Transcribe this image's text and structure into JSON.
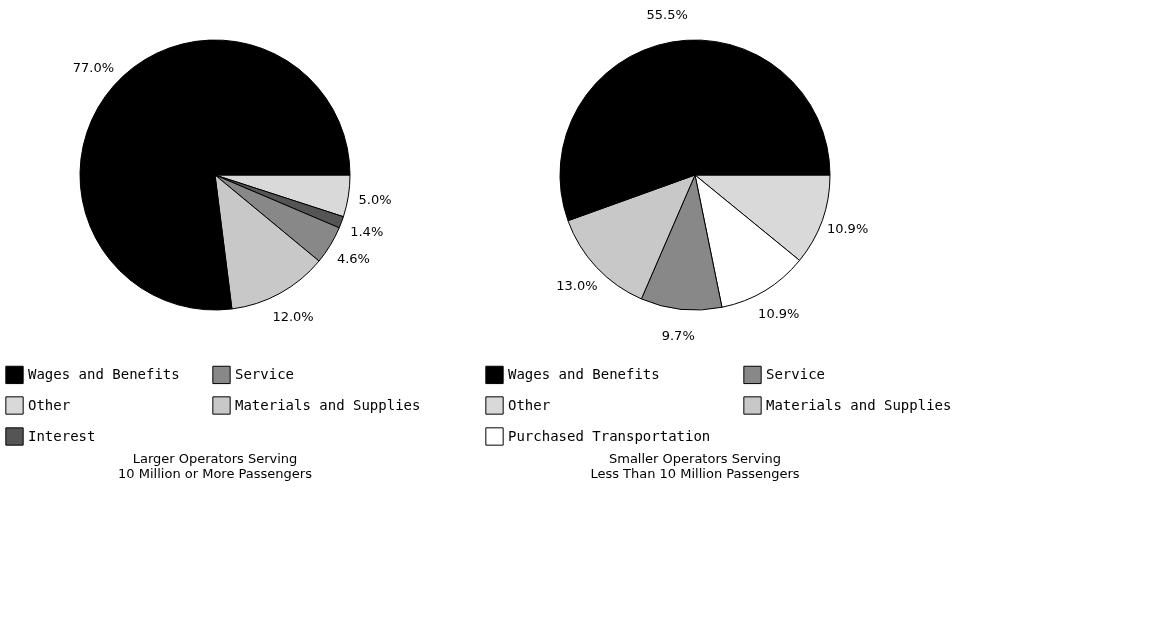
{
  "chart_data": [
    {
      "type": "pie",
      "title": "Larger Operators Serving\n10 Million or More Passengers",
      "categories": [
        "Other",
        "Interest",
        "Service",
        "Materials and Supplies",
        "Wages and Benefits"
      ],
      "values": [
        5.0,
        1.4,
        4.6,
        12.0,
        77.0
      ],
      "colors": [
        "#d9d9d9",
        "#555555",
        "#888888",
        "#c8c8c8",
        "#000000"
      ],
      "value_labels": [
        "5.0%",
        "1.4%",
        "4.6%",
        "12.0%",
        "77.0%"
      ],
      "legend": "bottom"
    },
    {
      "type": "pie",
      "title": "Smaller Operators Serving\nLess Than 10 Million Passengers",
      "categories": [
        "Other",
        "Purchased Transportation",
        "Service",
        "Materials and Supplies",
        "Wages and Benefits"
      ],
      "values": [
        10.9,
        10.9,
        9.7,
        13.0,
        55.5
      ],
      "colors": [
        "#d9d9d9",
        "#ffffff",
        "#888888",
        "#c8c8c8",
        "#000000"
      ],
      "value_labels": [
        "10.9%",
        "10.9%",
        "9.7%",
        "13.0%",
        "55.5%"
      ],
      "legend": "bottom"
    }
  ]
}
